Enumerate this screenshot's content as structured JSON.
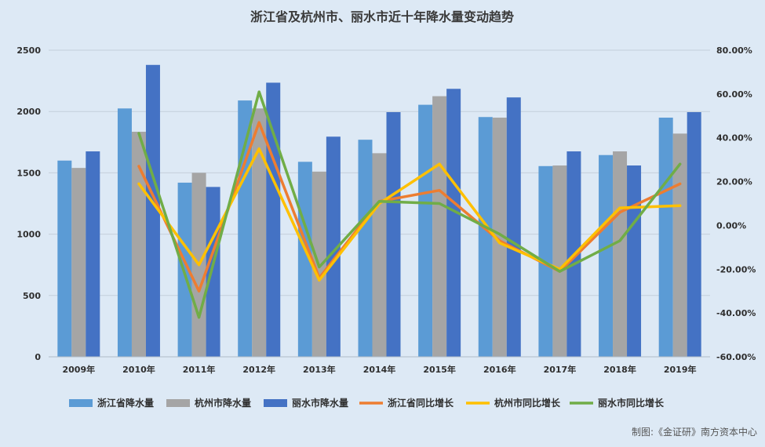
{
  "colors": {
    "background": "#dde9f5",
    "gridline": "#c4cfdb",
    "zj_rain": "#5b9bd5",
    "hz_rain": "#a5a5a5",
    "ls_rain": "#4472c4",
    "zj_growth": "#ed7d31",
    "hz_growth": "#ffc000",
    "ls_growth": "#70ad47"
  },
  "chart_data": {
    "type": "bar",
    "title": "浙江省及杭州市、丽水市近十年降水量变动趋势",
    "categories": [
      "2009年",
      "2010年",
      "2011年",
      "2012年",
      "2013年",
      "2014年",
      "2015年",
      "2016年",
      "2017年",
      "2018年",
      "2019年"
    ],
    "y_left": {
      "min": 0,
      "max": 2500,
      "step": 500,
      "ticks": [
        "0",
        "500",
        "1000",
        "1500",
        "2000",
        "2500"
      ]
    },
    "y_right": {
      "min": -60,
      "max": 80,
      "step": 20,
      "ticks": [
        "-60.00%",
        "-40.00%",
        "-20.00%",
        "0.00%",
        "20.00%",
        "40.00%",
        "60.00%",
        "80.00%"
      ]
    },
    "grid": true,
    "legend_position": "bottom",
    "bar_series": [
      {
        "name": "浙江省降水量",
        "color_key": "zj_rain",
        "values": [
          1600,
          2025,
          1420,
          2090,
          1590,
          1770,
          2055,
          1955,
          1555,
          1645,
          1950
        ]
      },
      {
        "name": "杭州市降水量",
        "color_key": "hz_rain",
        "values": [
          1540,
          1835,
          1500,
          2025,
          1510,
          1660,
          2125,
          1950,
          1560,
          1675,
          1820
        ]
      },
      {
        "name": "丽水市降水量",
        "color_key": "ls_rain",
        "values": [
          1675,
          2380,
          1385,
          2235,
          1795,
          1995,
          2185,
          2115,
          1675,
          1560,
          1995
        ]
      }
    ],
    "line_series": [
      {
        "name": "浙江省同比增长",
        "color_key": "zj_growth",
        "values": [
          null,
          27,
          -30,
          47,
          -24,
          11,
          16,
          -7,
          -21,
          6,
          19
        ]
      },
      {
        "name": "杭州市同比增长",
        "color_key": "hz_growth",
        "values": [
          null,
          19,
          -18,
          35,
          -25,
          10,
          28,
          -8,
          -20,
          8,
          9
        ]
      },
      {
        "name": "丽水市同比增长",
        "color_key": "ls_growth",
        "values": [
          null,
          42,
          -42,
          61,
          -19,
          11,
          10,
          -4,
          -21,
          -7,
          28
        ]
      }
    ],
    "credit": "制图:《金证研》南方资本中心"
  }
}
